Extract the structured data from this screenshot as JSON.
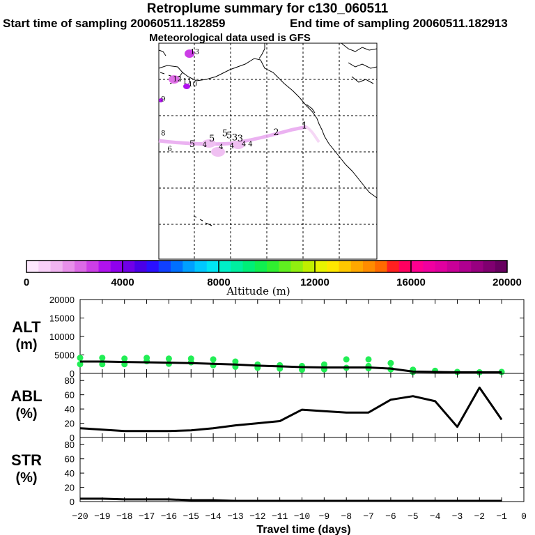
{
  "header": {
    "title": "Retroplume summary for c130_060511",
    "start_label": "Start time of sampling 20060511.182859",
    "end_label": "End time of sampling 20060511.182913",
    "met_label": "Meteorological data used is GFS"
  },
  "map": {
    "plume_labels": [
      {
        "text": "1",
        "lon_rel": 0.655,
        "lat_rel": 0.395
      },
      {
        "text": "2",
        "lon_rel": 0.525,
        "lat_rel": 0.425
      },
      {
        "text": "3",
        "lon_rel": 0.36,
        "lat_rel": 0.455
      },
      {
        "text": "3",
        "lon_rel": 0.335,
        "lat_rel": 0.45
      },
      {
        "text": "4",
        "lon_rel": 0.275,
        "lat_rel": 0.49
      },
      {
        "text": "4",
        "lon_rel": 0.325,
        "lat_rel": 0.485
      },
      {
        "text": "4",
        "lon_rel": 0.38,
        "lat_rel": 0.478
      },
      {
        "text": "4",
        "lon_rel": 0.41,
        "lat_rel": 0.478
      },
      {
        "text": "4",
        "lon_rel": 0.2,
        "lat_rel": 0.48
      },
      {
        "text": "5",
        "lon_rel": 0.23,
        "lat_rel": 0.455
      },
      {
        "text": "5",
        "lon_rel": 0.29,
        "lat_rel": 0.43
      },
      {
        "text": "5",
        "lon_rel": 0.31,
        "lat_rel": 0.44
      },
      {
        "text": "5",
        "lon_rel": 0.14,
        "lat_rel": 0.48
      },
      {
        "text": "6",
        "lon_rel": 0.04,
        "lat_rel": 0.5
      },
      {
        "text": "8",
        "lon_rel": 0.01,
        "lat_rel": 0.427
      },
      {
        "text": "9",
        "lon_rel": 0.01,
        "lat_rel": 0.27
      },
      {
        "text": "11",
        "lon_rel": 0.11,
        "lat_rel": 0.185
      },
      {
        "text": "12",
        "lon_rel": 0.065,
        "lat_rel": 0.175
      },
      {
        "text": "10",
        "lon_rel": 0.135,
        "lat_rel": 0.2
      },
      {
        "text": "13",
        "lon_rel": 0.145,
        "lat_rel": 0.05
      }
    ]
  },
  "colorbar": {
    "label": "Altitude (m)",
    "ticks": [
      "0",
      "4000",
      "8000",
      "12000",
      "16000",
      "20000"
    ],
    "min": 0,
    "max": 20000,
    "colors": [
      "#fde8fd",
      "#f8d0f8",
      "#f0b4f0",
      "#e890ea",
      "#dc6ae6",
      "#cc3ee6",
      "#b012ee",
      "#9000ee",
      "#7000e8",
      "#4a00e8",
      "#2a10ff",
      "#1040ff",
      "#0070ff",
      "#00a0ff",
      "#00c8ff",
      "#00e6f4",
      "#00f0c8",
      "#00f0a0",
      "#00f078",
      "#10f050",
      "#30f030",
      "#60f020",
      "#90f010",
      "#c0f000",
      "#e8f400",
      "#ffe800",
      "#ffc800",
      "#ffa800",
      "#ff8c00",
      "#ff6a00",
      "#ff2020",
      "#ff0060",
      "#ff0090",
      "#f000a0",
      "#e000a0",
      "#c80098",
      "#b00090",
      "#980080",
      "#800070",
      "#680060"
    ]
  },
  "chart_data": [
    {
      "type": "line",
      "panel": "ALT",
      "ylabel_line1": "ALT",
      "ylabel_line2": "(m)",
      "ylim": [
        0,
        20000
      ],
      "yticks": [
        "0",
        "5000",
        "10000",
        "15000",
        "20000"
      ],
      "x": [
        -20,
        -19,
        -18,
        -17,
        -16,
        -15,
        -14,
        -13,
        -12,
        -11,
        -10,
        -9,
        -8,
        -7,
        -6,
        -5,
        -4,
        -3,
        -2,
        -1
      ],
      "values": [
        3200,
        3200,
        3100,
        3000,
        2900,
        2800,
        2600,
        2400,
        2100,
        1900,
        1700,
        1600,
        1600,
        1600,
        1300,
        500,
        400,
        300,
        300,
        300
      ],
      "scatter": {
        "color": "#22ee55",
        "points": [
          [
            -20,
            4200
          ],
          [
            -20,
            2500
          ],
          [
            -19,
            4200
          ],
          [
            -19,
            2500
          ],
          [
            -18,
            4000
          ],
          [
            -18,
            2500
          ],
          [
            -17,
            4200
          ],
          [
            -17,
            3300
          ],
          [
            -16,
            4000
          ],
          [
            -16,
            2600
          ],
          [
            -15,
            4000
          ],
          [
            -15,
            3000
          ],
          [
            -14,
            3800
          ],
          [
            -14,
            2200
          ],
          [
            -13,
            3200
          ],
          [
            -13,
            1800
          ],
          [
            -12,
            2400
          ],
          [
            -12,
            1500
          ],
          [
            -11,
            2200
          ],
          [
            -11,
            1300
          ],
          [
            -10,
            2000
          ],
          [
            -10,
            1000
          ],
          [
            -9,
            2400
          ],
          [
            -9,
            1100
          ],
          [
            -8,
            3800
          ],
          [
            -8,
            1500
          ],
          [
            -7,
            3800
          ],
          [
            -7,
            2000
          ],
          [
            -7,
            1400
          ],
          [
            -6,
            2800
          ],
          [
            -6,
            1100
          ],
          [
            -5,
            1000
          ],
          [
            -5,
            400
          ],
          [
            -4,
            700
          ],
          [
            -3,
            400
          ],
          [
            -2,
            300
          ],
          [
            -1,
            400
          ]
        ]
      }
    },
    {
      "type": "line",
      "panel": "ABL",
      "ylabel_line1": "ABL",
      "ylabel_line2": "(%)",
      "ylim": [
        0,
        90
      ],
      "yticks": [
        "0",
        "20",
        "40",
        "60",
        "80"
      ],
      "x": [
        -20,
        -19,
        -18,
        -17,
        -16,
        -15,
        -14,
        -13,
        -12,
        -11,
        -10,
        -9,
        -8,
        -7,
        -6,
        -5,
        -4,
        -3,
        -2,
        -1
      ],
      "values": [
        13,
        11,
        9,
        9,
        9,
        10,
        13,
        17,
        20,
        23,
        39,
        37,
        35,
        35,
        53,
        58,
        51,
        15,
        70,
        25
      ]
    },
    {
      "type": "line",
      "panel": "STR",
      "ylabel_line1": "STR",
      "ylabel_line2": "(%)",
      "ylim": [
        0,
        90
      ],
      "yticks": [
        "0",
        "20",
        "40",
        "60",
        "80"
      ],
      "xlabel": "Travel time (days)",
      "xticks": [
        "−20",
        "−19",
        "−18",
        "−17",
        "−16",
        "−15",
        "−14",
        "−13",
        "−12",
        "−11",
        "−10",
        "−9",
        "−8",
        "−7",
        "−6",
        "−5",
        "−4",
        "−3",
        "−2",
        "−1",
        "0"
      ],
      "x": [
        -20,
        -19,
        -18,
        -17,
        -16,
        -15,
        -14,
        -13,
        -12,
        -11,
        -10,
        -9,
        -8,
        -7,
        -6,
        -5,
        -4,
        -3,
        -2,
        -1
      ],
      "values": [
        4,
        4,
        3,
        3,
        3,
        2,
        2,
        1,
        1,
        1,
        1,
        1,
        1,
        1,
        1,
        1,
        1,
        1,
        1,
        1
      ]
    }
  ]
}
